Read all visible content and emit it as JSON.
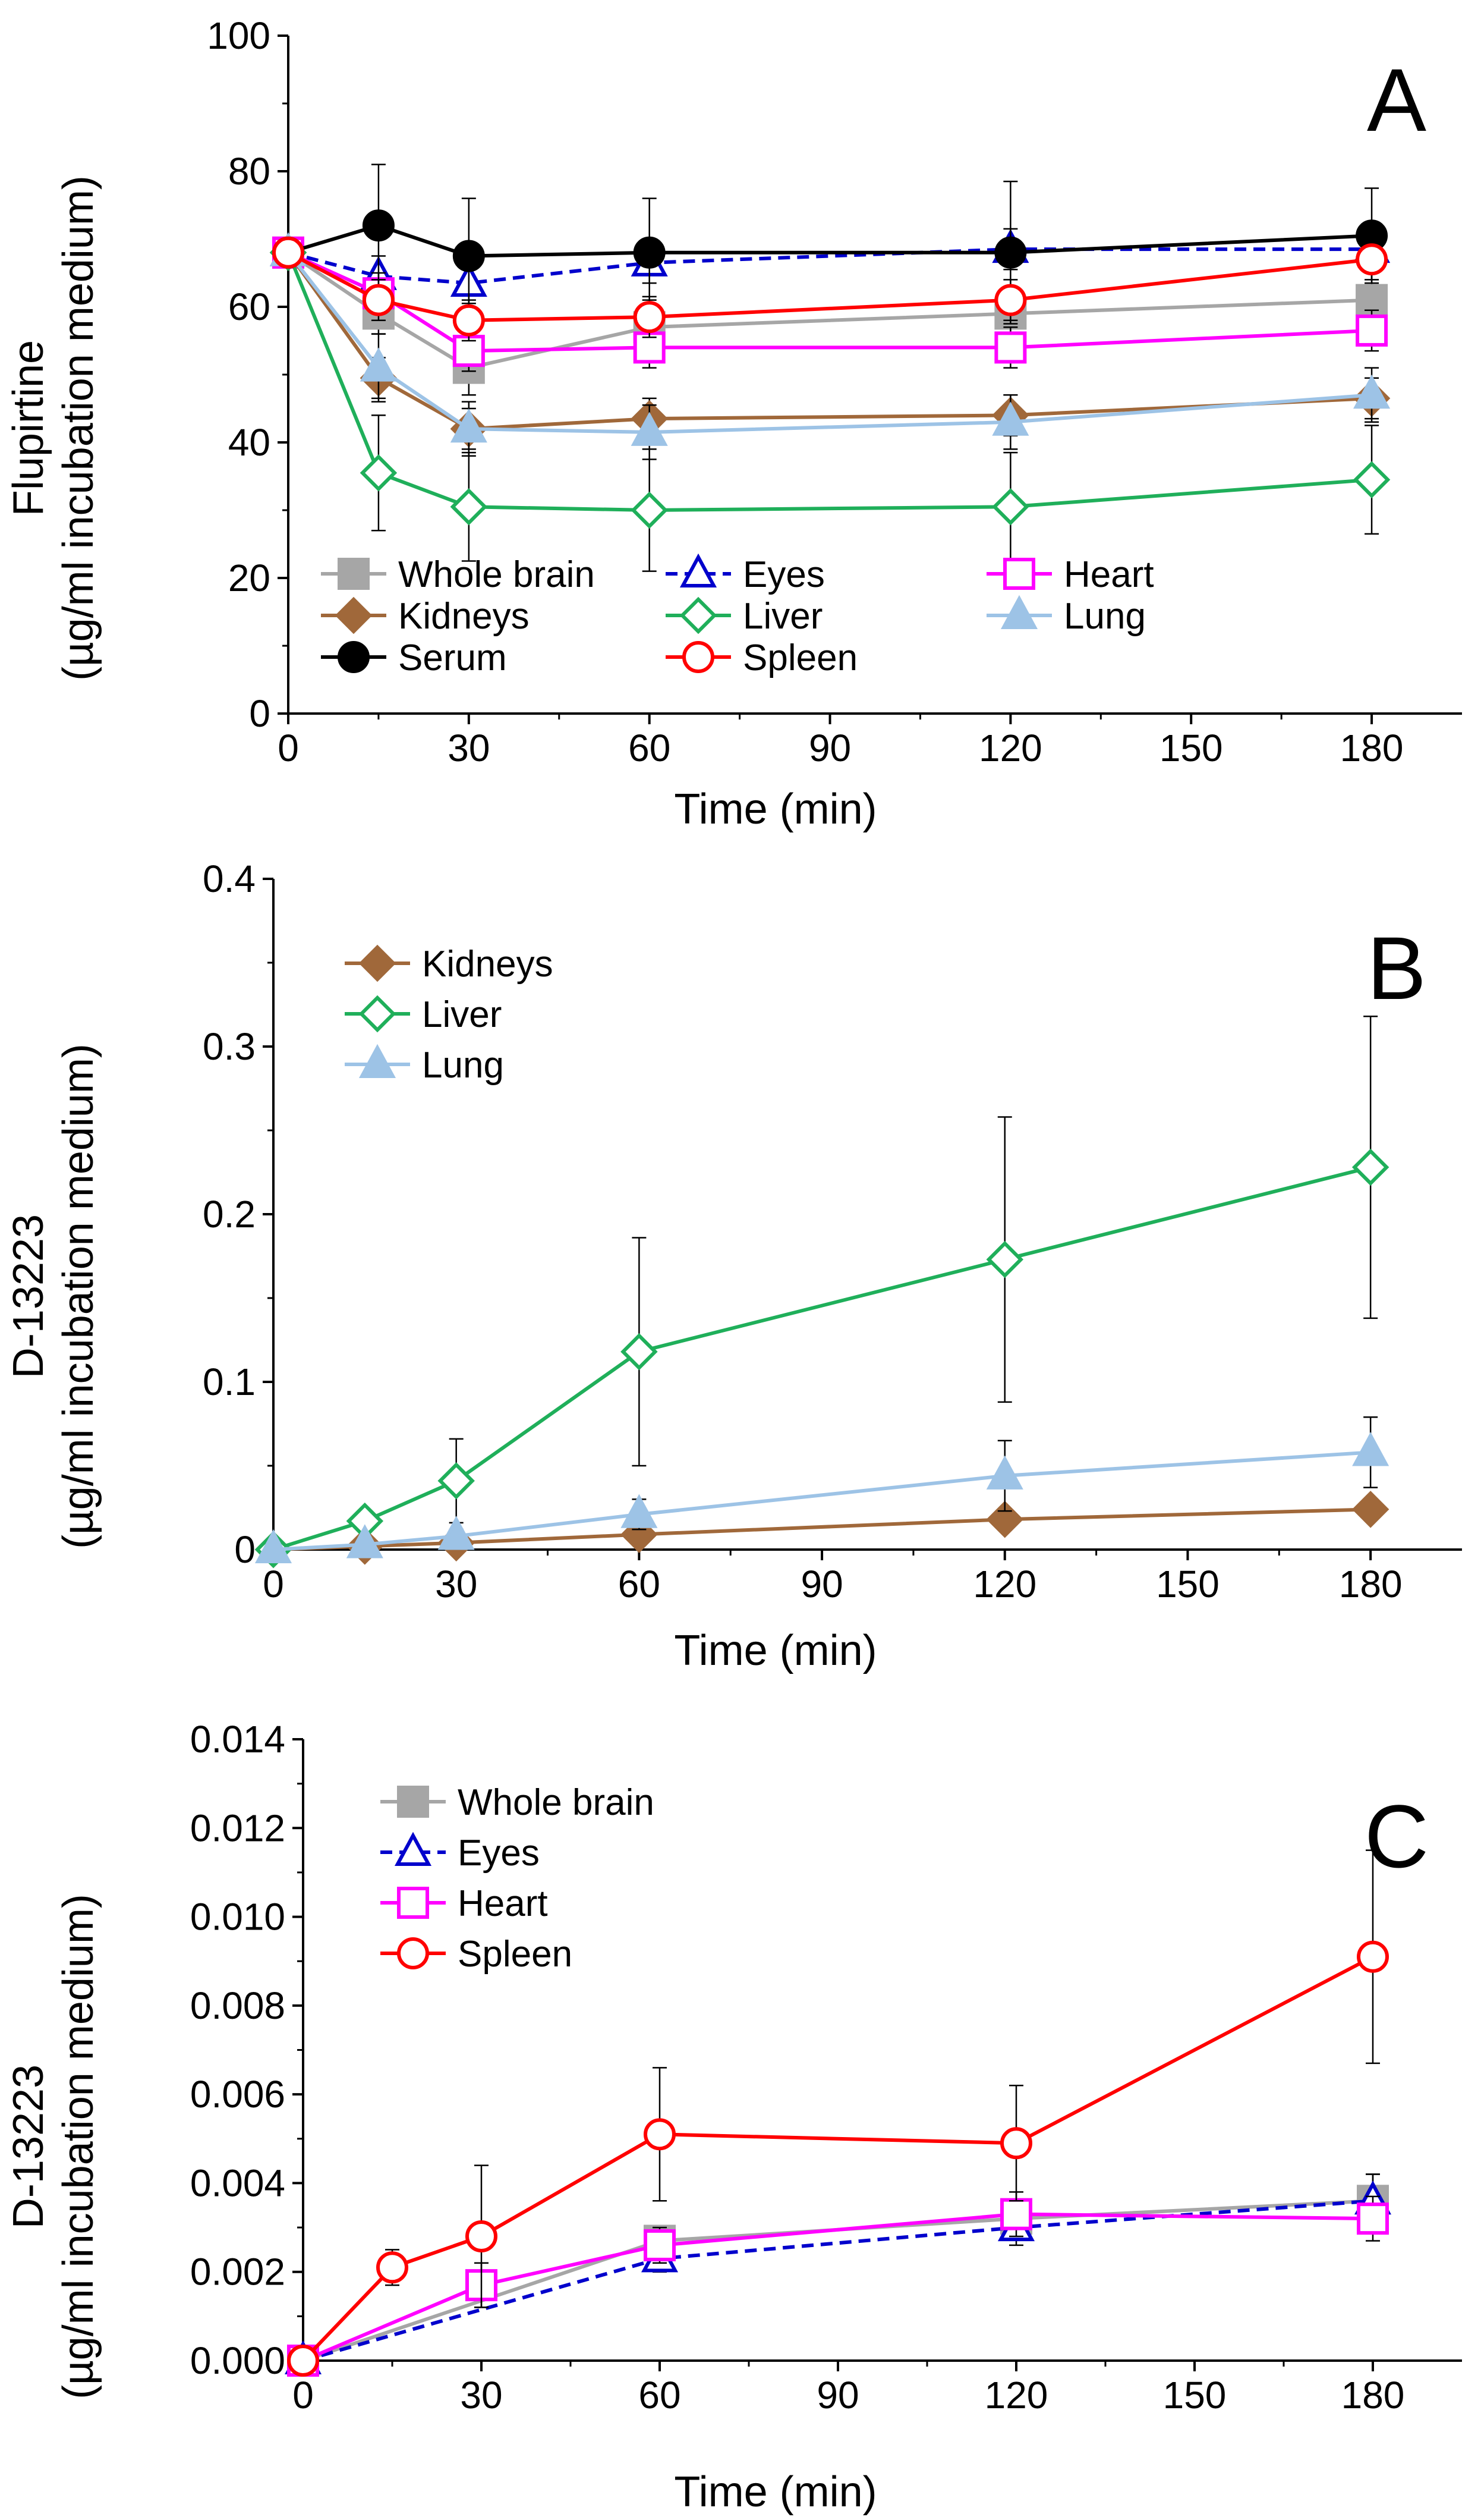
{
  "chart_data": [
    {
      "type": "line",
      "panel_label": "A",
      "xlabel": "Time (min)",
      "ylabel_line1": "Flupirtine",
      "ylabel_line2": "(µg/ml incubation medium)",
      "xlim": [
        0,
        195
      ],
      "ylim": [
        0,
        100
      ],
      "x_ticks": [
        0,
        30,
        60,
        90,
        120,
        150,
        180
      ],
      "x_tick_labels": [
        "0",
        "30",
        "60",
        "90",
        "120",
        "150",
        "180"
      ],
      "y_ticks": [
        0,
        20,
        40,
        60,
        80,
        100
      ],
      "y_tick_labels": [
        "0",
        "20",
        "40",
        "60",
        "80",
        "100"
      ],
      "legend_columns": 3,
      "series": [
        {
          "name": "Whole brain",
          "color": "#A6A6A6",
          "marker": "square",
          "filled": true,
          "dashed": false,
          "x": [
            0,
            15,
            30,
            60,
            120,
            180
          ],
          "y": [
            68,
            59,
            51,
            57,
            59,
            61
          ],
          "err": [
            0,
            3,
            4,
            4,
            4,
            4
          ]
        },
        {
          "name": "Eyes",
          "color": "#0000CC",
          "marker": "triangle",
          "filled": false,
          "dashed": true,
          "x": [
            0,
            15,
            30,
            60,
            120,
            180
          ],
          "y": [
            68,
            64.5,
            63.5,
            66.5,
            68.5,
            68.5
          ],
          "err": [
            0,
            3,
            3,
            3,
            3,
            3
          ]
        },
        {
          "name": "Heart",
          "color": "#FF00FF",
          "marker": "square",
          "filled": false,
          "dashed": false,
          "x": [
            0,
            15,
            30,
            60,
            120,
            180
          ],
          "y": [
            68,
            62,
            53.5,
            54,
            54,
            56.5
          ],
          "err": [
            0,
            3,
            3,
            3,
            3,
            3
          ]
        },
        {
          "name": "Kidneys",
          "color": "#A0683A",
          "marker": "diamond",
          "filled": true,
          "dashed": false,
          "x": [
            0,
            15,
            30,
            60,
            120,
            180
          ],
          "y": [
            68,
            49.5,
            42,
            43.5,
            44,
            46.5
          ],
          "err": [
            0,
            3,
            3,
            3,
            3,
            3
          ]
        },
        {
          "name": "Liver",
          "color": "#1FAF5A",
          "marker": "diamond",
          "filled": false,
          "dashed": false,
          "x": [
            0,
            15,
            30,
            60,
            120,
            180
          ],
          "y": [
            68,
            35.5,
            30.5,
            30,
            30.5,
            34.5
          ],
          "err": [
            0,
            8.5,
            8,
            9,
            8,
            8
          ]
        },
        {
          "name": "Lung",
          "color": "#9DC3E6",
          "marker": "triangle",
          "filled": true,
          "dashed": false,
          "x": [
            0,
            15,
            30,
            60,
            120,
            180
          ],
          "y": [
            68,
            51,
            42,
            41.5,
            43,
            47
          ],
          "err": [
            0,
            5,
            4,
            4,
            4,
            4
          ]
        },
        {
          "name": "Serum",
          "color": "#000000",
          "marker": "circle",
          "filled": true,
          "dashed": false,
          "x": [
            0,
            15,
            30,
            60,
            120,
            180
          ],
          "y": [
            68,
            72,
            67.5,
            68,
            68,
            70.5
          ],
          "err": [
            0,
            9,
            8.5,
            8,
            10.5,
            7
          ]
        },
        {
          "name": "Spleen",
          "color": "#FF0000",
          "marker": "circle",
          "filled": false,
          "dashed": false,
          "x": [
            0,
            15,
            30,
            60,
            120,
            180
          ],
          "y": [
            68,
            61,
            58,
            58.5,
            61,
            67
          ],
          "err": [
            0,
            3,
            3,
            3,
            3,
            3
          ]
        }
      ]
    },
    {
      "type": "line",
      "panel_label": "B",
      "xlabel": "Time (min)",
      "ylabel_line1": "D-13223",
      "ylabel_line2": "(µg/ml incubation medium)",
      "xlim": [
        0,
        195
      ],
      "ylim": [
        0,
        0.4
      ],
      "x_ticks": [
        0,
        30,
        60,
        90,
        120,
        150,
        180
      ],
      "x_tick_labels": [
        "0",
        "30",
        "60",
        "90",
        "120",
        "150",
        "180"
      ],
      "y_ticks": [
        0,
        0.1,
        0.2,
        0.3,
        0.4
      ],
      "y_tick_labels": [
        "0",
        "0.1",
        "0.2",
        "0.3",
        "0.4"
      ],
      "legend_columns": 1,
      "series": [
        {
          "name": "Kidneys",
          "color": "#A0683A",
          "marker": "diamond",
          "filled": true,
          "dashed": false,
          "x": [
            0,
            15,
            30,
            60,
            120,
            180
          ],
          "y": [
            0,
            0.002,
            0.004,
            0.009,
            0.018,
            0.024
          ],
          "err": [
            0,
            0.001,
            0.002,
            0.003,
            0.004,
            0.005
          ]
        },
        {
          "name": "Liver",
          "color": "#1FAF5A",
          "marker": "diamond",
          "filled": false,
          "dashed": false,
          "x": [
            0,
            15,
            30,
            60,
            120,
            180
          ],
          "y": [
            0,
            0.017,
            0.041,
            0.118,
            0.173,
            0.228
          ],
          "err": [
            0,
            0.006,
            0.025,
            0.068,
            0.085,
            0.09
          ]
        },
        {
          "name": "Lung",
          "color": "#9DC3E6",
          "marker": "triangle",
          "filled": true,
          "dashed": false,
          "x": [
            0,
            15,
            30,
            60,
            120,
            180
          ],
          "y": [
            0,
            0.003,
            0.008,
            0.021,
            0.044,
            0.058
          ],
          "err": [
            0,
            0.002,
            0.004,
            0.009,
            0.021,
            0.021
          ]
        }
      ]
    },
    {
      "type": "line",
      "panel_label": "C",
      "xlabel": "Time (min)",
      "ylabel_line1": "D-13223",
      "ylabel_line2": "(µg/ml incubation medium)",
      "xlim": [
        0,
        195
      ],
      "ylim": [
        0,
        0.014
      ],
      "x_ticks": [
        0,
        30,
        60,
        90,
        120,
        150,
        180
      ],
      "x_tick_labels": [
        "0",
        "30",
        "60",
        "90",
        "120",
        "150",
        "180"
      ],
      "y_ticks": [
        0,
        0.002,
        0.004,
        0.006,
        0.008,
        0.01,
        0.012,
        0.014
      ],
      "y_tick_labels": [
        "0.000",
        "0.002",
        "0.004",
        "0.006",
        "0.008",
        "0.010",
        "0.012",
        "0.014"
      ],
      "legend_columns": 1,
      "series": [
        {
          "name": "Whole brain",
          "color": "#A6A6A6",
          "marker": "square",
          "filled": true,
          "dashed": false,
          "x": [
            0,
            60,
            120,
            180
          ],
          "y": [
            0,
            0.0027,
            0.0032,
            0.0036
          ],
          "err": [
            0,
            0.0003,
            0.0004,
            0.0006
          ]
        },
        {
          "name": "Eyes",
          "color": "#0000CC",
          "marker": "triangle",
          "filled": false,
          "dashed": true,
          "x": [
            0,
            60,
            120,
            180
          ],
          "y": [
            0,
            0.0023,
            0.003,
            0.0036
          ],
          "err": [
            0,
            0.0003,
            0.0004,
            0.0006
          ]
        },
        {
          "name": "Heart",
          "color": "#FF00FF",
          "marker": "square",
          "filled": false,
          "dashed": false,
          "x": [
            0,
            30,
            60,
            120,
            180
          ],
          "y": [
            0,
            0.0017,
            0.0026,
            0.0033,
            0.0032
          ],
          "err": [
            0,
            0.0005,
            0.0004,
            0.0005,
            0.0005
          ]
        },
        {
          "name": "Spleen",
          "color": "#FF0000",
          "marker": "circle",
          "filled": false,
          "dashed": false,
          "x": [
            0,
            15,
            30,
            60,
            120,
            180
          ],
          "y": [
            0,
            0.0021,
            0.0028,
            0.0051,
            0.0049,
            0.0091
          ],
          "err": [
            0,
            0.0004,
            0.0016,
            0.0015,
            0.0013,
            0.0024
          ]
        }
      ]
    }
  ]
}
